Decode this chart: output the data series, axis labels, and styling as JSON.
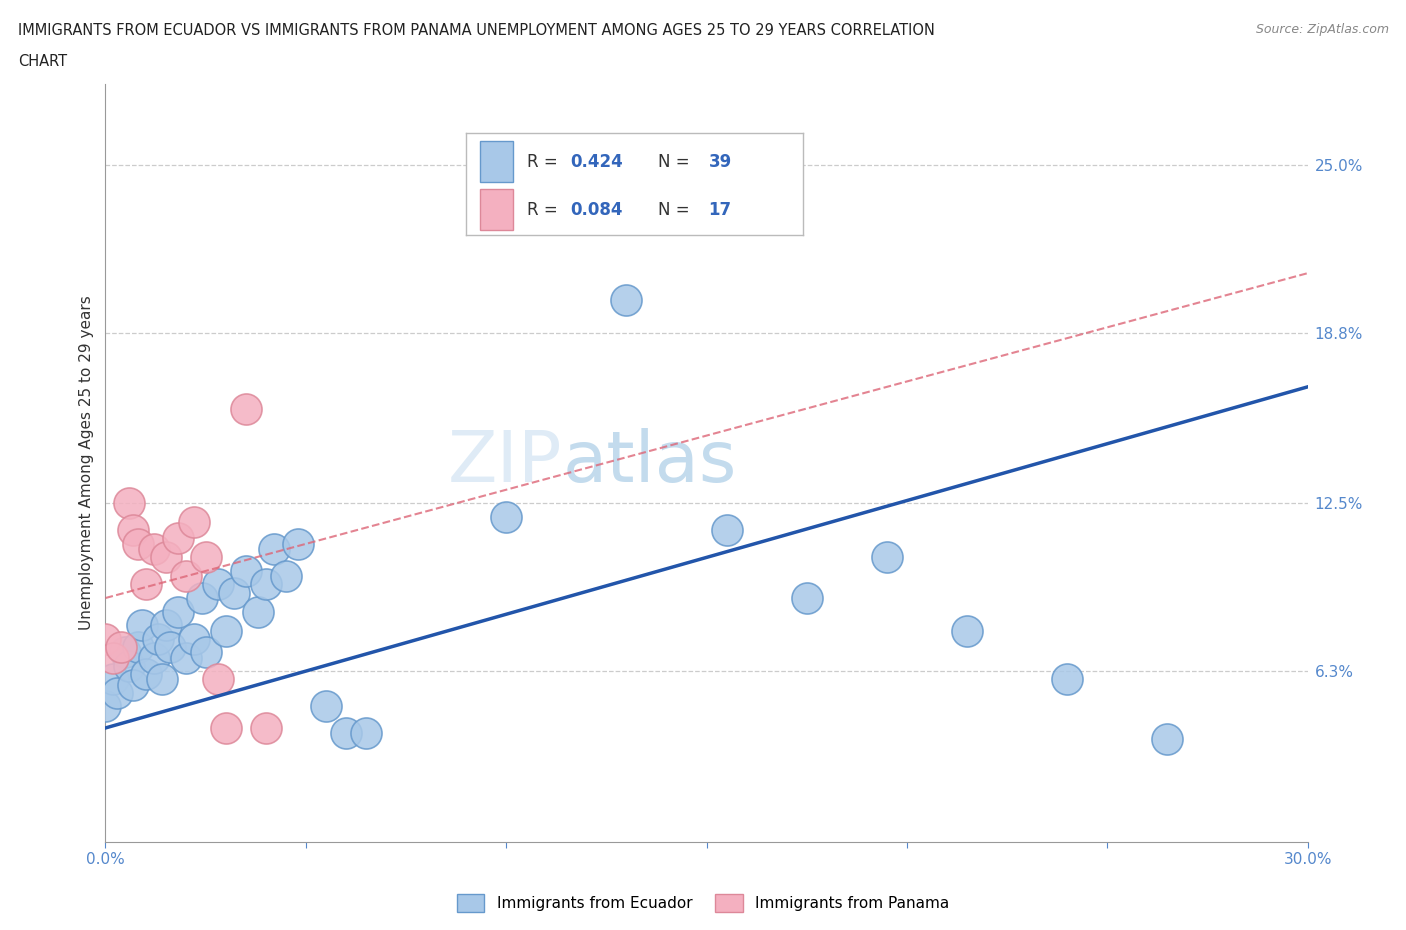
{
  "title_line1": "IMMIGRANTS FROM ECUADOR VS IMMIGRANTS FROM PANAMA UNEMPLOYMENT AMONG AGES 25 TO 29 YEARS CORRELATION",
  "title_line2": "CHART",
  "source": "Source: ZipAtlas.com",
  "ylabel": "Unemployment Among Ages 25 to 29 years",
  "xlim": [
    0.0,
    0.3
  ],
  "ylim": [
    0.0,
    0.28
  ],
  "ytick_positions": [
    0.063,
    0.125,
    0.188,
    0.25
  ],
  "ytick_labels": [
    "6.3%",
    "12.5%",
    "18.8%",
    "25.0%"
  ],
  "R_ecuador": 0.424,
  "N_ecuador": 39,
  "R_panama": 0.084,
  "N_panama": 17,
  "ecuador_color": "#a8c8e8",
  "ecuador_edge_color": "#6699cc",
  "panama_color": "#f4b0c0",
  "panama_edge_color": "#dd8899",
  "ecuador_line_color": "#2255aa",
  "panama_line_color": "#dd6677",
  "watermark_color": "#cce0f0",
  "ecuador_x": [
    0.0,
    0.002,
    0.003,
    0.005,
    0.006,
    0.007,
    0.008,
    0.009,
    0.01,
    0.012,
    0.013,
    0.014,
    0.015,
    0.016,
    0.018,
    0.02,
    0.022,
    0.024,
    0.025,
    0.028,
    0.03,
    0.032,
    0.035,
    0.038,
    0.04,
    0.042,
    0.045,
    0.048,
    0.055,
    0.06,
    0.065,
    0.1,
    0.13,
    0.155,
    0.175,
    0.195,
    0.215,
    0.24,
    0.265
  ],
  "ecuador_y": [
    0.05,
    0.06,
    0.055,
    0.07,
    0.065,
    0.058,
    0.072,
    0.08,
    0.062,
    0.068,
    0.075,
    0.06,
    0.08,
    0.072,
    0.085,
    0.068,
    0.075,
    0.09,
    0.07,
    0.095,
    0.078,
    0.092,
    0.1,
    0.085,
    0.095,
    0.108,
    0.098,
    0.11,
    0.05,
    0.04,
    0.04,
    0.12,
    0.2,
    0.115,
    0.09,
    0.105,
    0.078,
    0.06,
    0.038
  ],
  "panama_x": [
    0.0,
    0.002,
    0.004,
    0.006,
    0.007,
    0.008,
    0.01,
    0.012,
    0.015,
    0.018,
    0.02,
    0.022,
    0.025,
    0.028,
    0.03,
    0.035,
    0.04
  ],
  "panama_y": [
    0.075,
    0.068,
    0.072,
    0.125,
    0.115,
    0.11,
    0.095,
    0.108,
    0.105,
    0.112,
    0.098,
    0.118,
    0.105,
    0.06,
    0.042,
    0.16,
    0.042
  ]
}
